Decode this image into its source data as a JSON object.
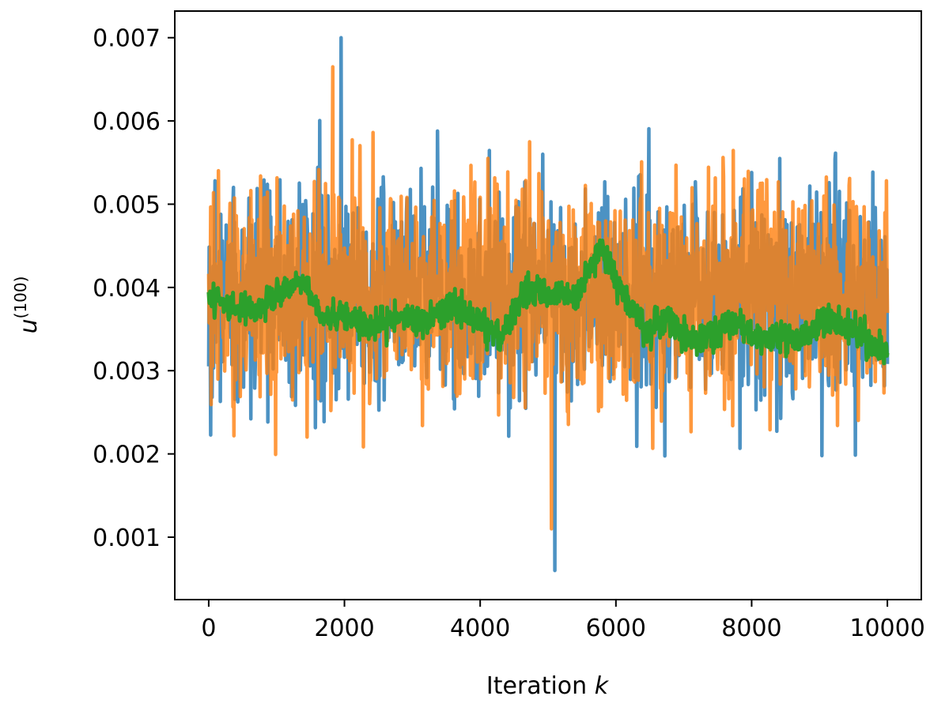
{
  "chart_data": {
    "type": "line",
    "xlabel_text": "Iteration ",
    "xlabel_var": "k",
    "ylabel_var": "u",
    "ylabel_sup": "(100)",
    "xlim": [
      -500,
      10500
    ],
    "ylim": [
      0.00025,
      0.00732
    ],
    "xticks": [
      0,
      2000,
      4000,
      6000,
      8000,
      10000
    ],
    "xtick_labels": [
      "0",
      "2000",
      "4000",
      "6000",
      "8000",
      "10000"
    ],
    "yticks": [
      0.001,
      0.002,
      0.003,
      0.004,
      0.005,
      0.006,
      0.007
    ],
    "ytick_labels": [
      "0.001",
      "0.002",
      "0.003",
      "0.004",
      "0.005",
      "0.006",
      "0.007"
    ],
    "grid": false,
    "colors": {
      "series_blue": "#1f77b4",
      "series_orange": "#ff7f0e",
      "series_green": "#2ca02c",
      "axis": "#000000"
    },
    "series": [
      {
        "color": "#1f77b4",
        "kind": "noisy trace",
        "x_range": [
          0,
          10000
        ],
        "mean": 0.00395,
        "typical_range": [
          0.0025,
          0.0055
        ],
        "max": 0.007,
        "max_at": 1950,
        "min": 0.0006,
        "min_at": 5100
      },
      {
        "color": "#ff7f0e",
        "kind": "noisy trace",
        "x_range": [
          0,
          10000
        ],
        "mean": 0.00395,
        "typical_range": [
          0.0025,
          0.0055
        ],
        "max": 0.00665,
        "max_at": 1830,
        "min": 0.0011,
        "min_at": 5050
      },
      {
        "color": "#2ca02c",
        "kind": "smoothed trace",
        "x": [
          0,
          300,
          600,
          1000,
          1400,
          1700,
          2000,
          2400,
          2800,
          3200,
          3600,
          4000,
          4300,
          4700,
          5000,
          5400,
          5800,
          6000,
          6400,
          6800,
          7000,
          7400,
          7800,
          8000,
          8300,
          8700,
          9100,
          9500,
          9800,
          10000
        ],
        "values": [
          0.0039,
          0.0038,
          0.0037,
          0.0039,
          0.0041,
          0.0036,
          0.0037,
          0.0035,
          0.0037,
          0.0036,
          0.0038,
          0.0036,
          0.0034,
          0.004,
          0.0039,
          0.0039,
          0.0045,
          0.0041,
          0.0035,
          0.0036,
          0.0034,
          0.0034,
          0.0036,
          0.0034,
          0.0034,
          0.0034,
          0.0036,
          0.0035,
          0.0033,
          0.0032
        ]
      }
    ]
  }
}
